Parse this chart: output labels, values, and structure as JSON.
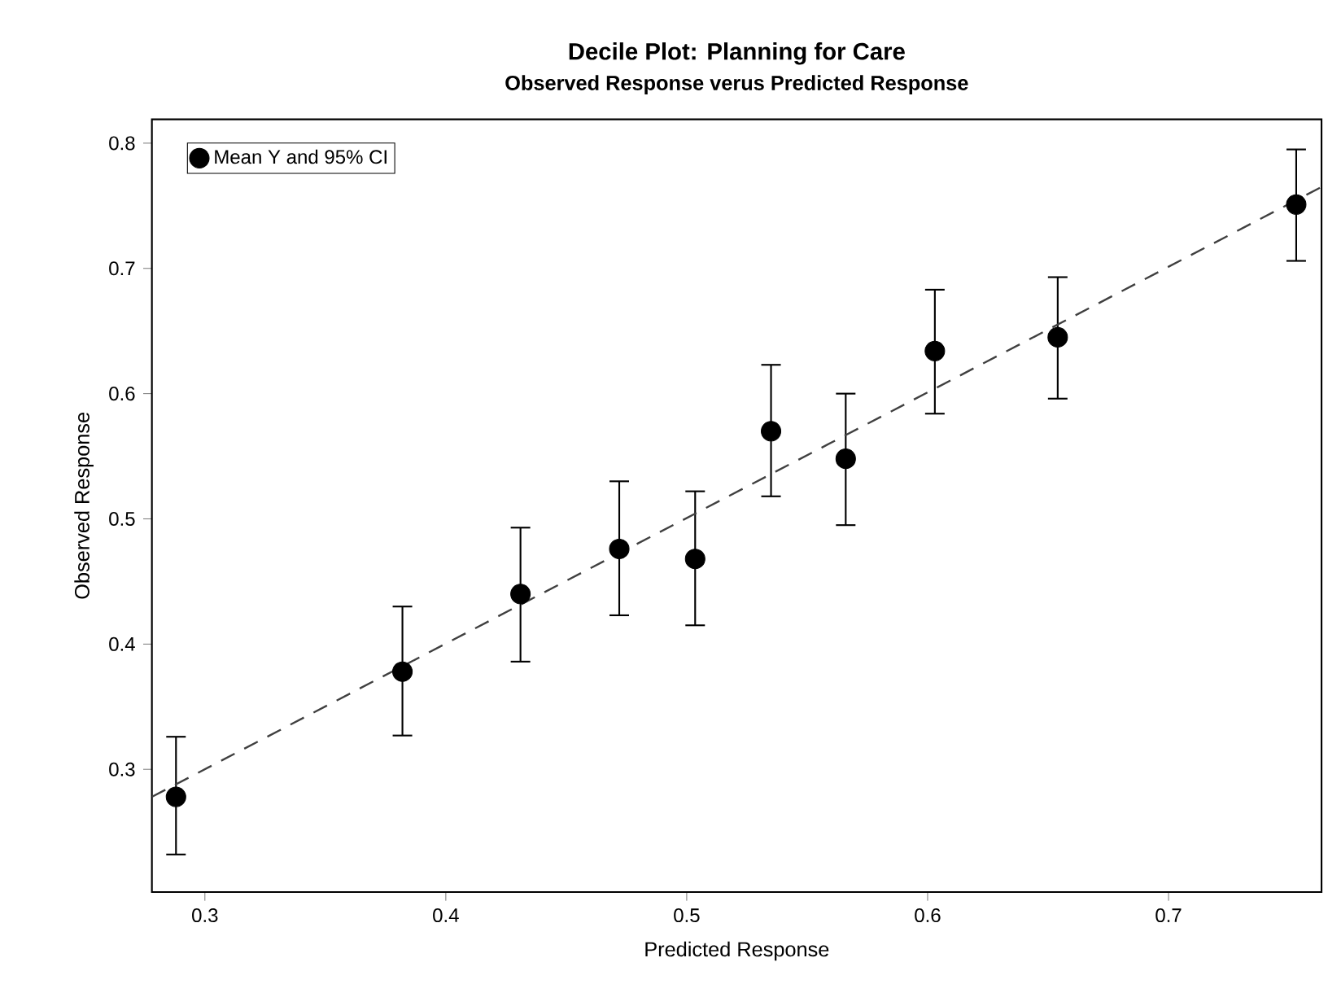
{
  "chart_data": {
    "type": "scatter",
    "title": "Decile Plot: Planning for Care",
    "subtitle": "Observed Response verus Predicted Response",
    "xlabel": "Predicted Response",
    "ylabel": "Observed Response",
    "xlim": [
      0.278,
      0.7635
    ],
    "ylim": [
      0.202,
      0.819
    ],
    "xticks": [
      0.3,
      0.4,
      0.5,
      0.6,
      0.7
    ],
    "yticks": [
      0.3,
      0.4,
      0.5,
      0.6,
      0.7,
      0.8
    ],
    "legend": "top left",
    "grid": false,
    "series": [
      {
        "name": "Mean Y and 95% CI",
        "color": "#000000",
        "marker": "circle",
        "x": [
          0.288,
          0.382,
          0.431,
          0.472,
          0.5035,
          0.535,
          0.566,
          0.603,
          0.654,
          0.753
        ],
        "values": [
          0.278,
          0.378,
          0.44,
          0.476,
          0.468,
          0.57,
          0.548,
          0.634,
          0.645,
          0.751
        ],
        "errors": [
          [
            0.232,
            0.326
          ],
          [
            0.327,
            0.43
          ],
          [
            0.386,
            0.493
          ],
          [
            0.423,
            0.53
          ],
          [
            0.415,
            0.522
          ],
          [
            0.518,
            0.623
          ],
          [
            0.495,
            0.6
          ],
          [
            0.584,
            0.683
          ],
          [
            0.596,
            0.693
          ],
          [
            0.706,
            0.795
          ]
        ]
      },
      {
        "type": "line",
        "color": "#404040",
        "line_style": "dashed",
        "marker": "none",
        "x": [
          0.278,
          0.7635
        ],
        "values": [
          0.278,
          0.765
        ]
      }
    ]
  }
}
